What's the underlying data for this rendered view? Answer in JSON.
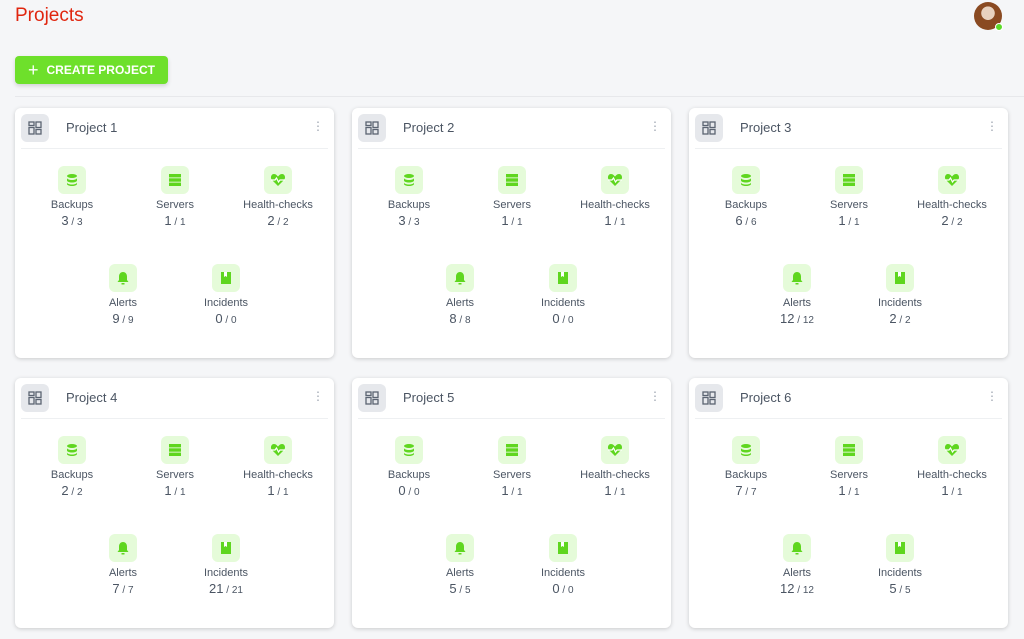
{
  "header": {
    "title": "Projects",
    "create_label": "CREATE PROJECT"
  },
  "colors": {
    "accent": "#6ee02b",
    "title": "#e0260f",
    "icon_bg": "#e5fbd9"
  },
  "stat_labels": [
    "Backups",
    "Servers",
    "Health-checks",
    "Alerts",
    "Incidents"
  ],
  "stat_icons": [
    "database-icon",
    "server-icon",
    "heart-pulse-icon",
    "bell-icon",
    "bookmark-icon"
  ],
  "projects": [
    {
      "name": "Project 1",
      "stats": [
        [
          "3",
          "3"
        ],
        [
          "1",
          "1"
        ],
        [
          "2",
          "2"
        ],
        [
          "9",
          "9"
        ],
        [
          "0",
          "0"
        ]
      ]
    },
    {
      "name": "Project 2",
      "stats": [
        [
          "3",
          "3"
        ],
        [
          "1",
          "1"
        ],
        [
          "1",
          "1"
        ],
        [
          "8",
          "8"
        ],
        [
          "0",
          "0"
        ]
      ]
    },
    {
      "name": "Project 3",
      "stats": [
        [
          "6",
          "6"
        ],
        [
          "1",
          "1"
        ],
        [
          "2",
          "2"
        ],
        [
          "12",
          "12"
        ],
        [
          "2",
          "2"
        ]
      ]
    },
    {
      "name": "Project 4",
      "stats": [
        [
          "2",
          "2"
        ],
        [
          "1",
          "1"
        ],
        [
          "1",
          "1"
        ],
        [
          "7",
          "7"
        ],
        [
          "21",
          "21"
        ]
      ]
    },
    {
      "name": "Project 5",
      "stats": [
        [
          "0",
          "0"
        ],
        [
          "1",
          "1"
        ],
        [
          "1",
          "1"
        ],
        [
          "5",
          "5"
        ],
        [
          "0",
          "0"
        ]
      ]
    },
    {
      "name": "Project 6",
      "stats": [
        [
          "7",
          "7"
        ],
        [
          "1",
          "1"
        ],
        [
          "1",
          "1"
        ],
        [
          "12",
          "12"
        ],
        [
          "5",
          "5"
        ]
      ]
    }
  ]
}
